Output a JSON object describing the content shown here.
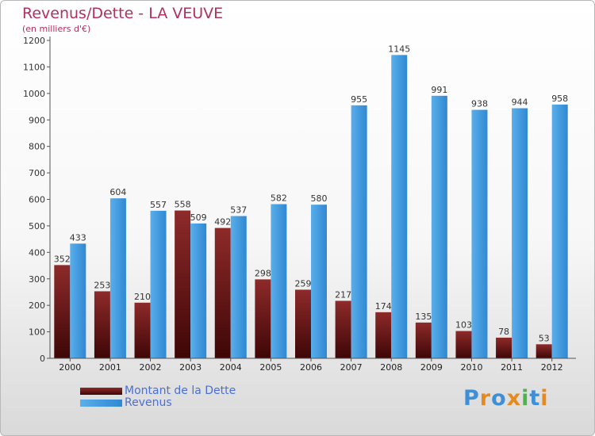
{
  "title": "Revenus/Dette - LA VEUVE",
  "subtitle": "(en milliers d'€)",
  "logo": "Proxiti",
  "colors": {
    "dette": "#7a1e1e",
    "revenus": "#3d9ae0",
    "title": "#b03060",
    "legend_text": "#4a6fd6"
  },
  "chart_data": {
    "type": "bar",
    "categories": [
      "2000",
      "2001",
      "2002",
      "2003",
      "2004",
      "2005",
      "2006",
      "2007",
      "2008",
      "2009",
      "2010",
      "2011",
      "2012"
    ],
    "series": [
      {
        "name": "Montant de la Dette",
        "values": [
          352,
          253,
          210,
          558,
          492,
          298,
          259,
          217,
          174,
          135,
          103,
          78,
          53
        ]
      },
      {
        "name": "Revenus",
        "values": [
          433,
          604,
          557,
          509,
          537,
          582,
          580,
          955,
          1145,
          991,
          938,
          944,
          958
        ]
      }
    ],
    "yticks": [
      0,
      100,
      200,
      300,
      400,
      500,
      600,
      700,
      800,
      900,
      1000,
      1100,
      1200
    ],
    "ylim": [
      0,
      1200
    ],
    "grid": false,
    "legend": "bottom-left"
  }
}
